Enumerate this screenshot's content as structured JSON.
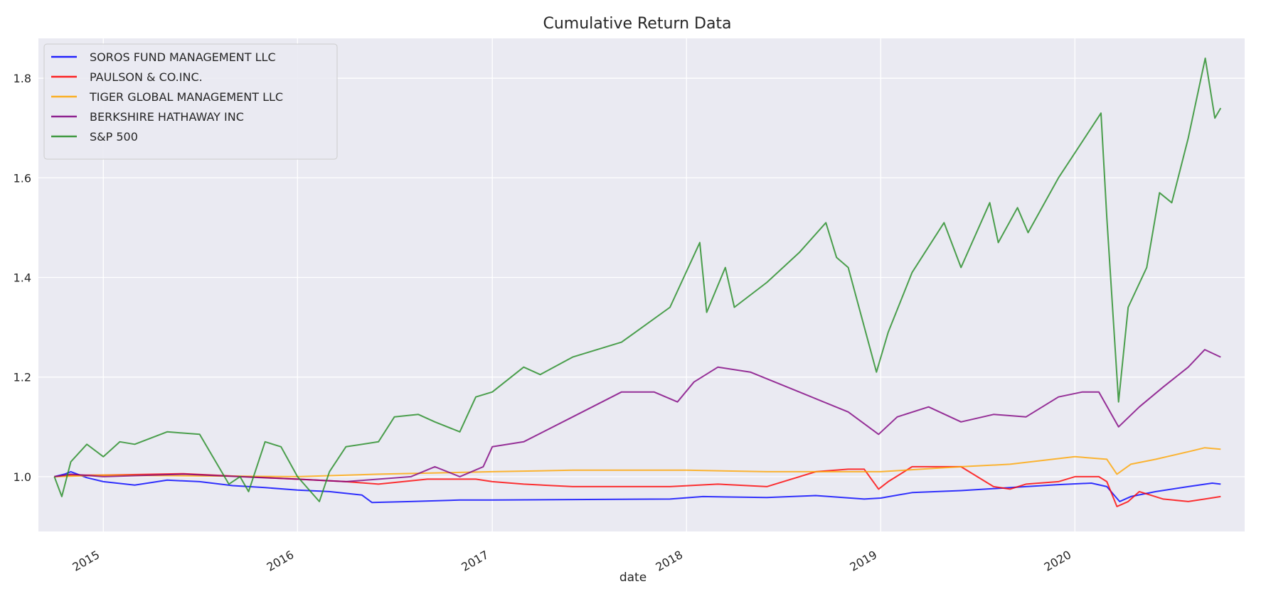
{
  "chart_data": {
    "type": "line",
    "title": "Cumulative Return Data",
    "xlabel": "date",
    "ylabel": "",
    "x_axis_type": "date",
    "xlim": [
      "2014-09-01",
      "2020-11-15"
    ],
    "ylim": [
      0.89,
      1.88
    ],
    "x_ticks": [
      "2015",
      "2016",
      "2017",
      "2018",
      "2019",
      "2020"
    ],
    "x_tick_dates": [
      "2015-01-01",
      "2016-01-01",
      "2017-01-01",
      "2018-01-01",
      "2019-01-01",
      "2020-01-01"
    ],
    "y_ticks": [
      "1.0",
      "1.2",
      "1.4",
      "1.6",
      "1.8"
    ],
    "y_tick_values": [
      1.0,
      1.2,
      1.4,
      1.6,
      1.8
    ],
    "grid": true,
    "legend_position": "top-left",
    "background": "#eaeaf2",
    "series": [
      {
        "name": "SOROS FUND MANAGEMENT LLC",
        "color": "#0000ff",
        "points": [
          [
            "2014-10-01",
            1.0
          ],
          [
            "2014-10-20",
            1.005
          ],
          [
            "2014-11-01",
            1.01
          ],
          [
            "2014-12-01",
            0.998
          ],
          [
            "2015-01-01",
            0.99
          ],
          [
            "2015-03-01",
            0.983
          ],
          [
            "2015-05-01",
            0.993
          ],
          [
            "2015-07-01",
            0.99
          ],
          [
            "2015-09-01",
            0.982
          ],
          [
            "2015-11-01",
            0.978
          ],
          [
            "2016-01-01",
            0.973
          ],
          [
            "2016-03-01",
            0.97
          ],
          [
            "2016-05-01",
            0.963
          ],
          [
            "2016-05-20",
            0.948
          ],
          [
            "2016-08-01",
            0.95
          ],
          [
            "2016-11-01",
            0.953
          ],
          [
            "2017-01-01",
            0.953
          ],
          [
            "2017-06-01",
            0.954
          ],
          [
            "2017-12-01",
            0.955
          ],
          [
            "2018-02-01",
            0.96
          ],
          [
            "2018-06-01",
            0.958
          ],
          [
            "2018-09-01",
            0.962
          ],
          [
            "2018-12-01",
            0.955
          ],
          [
            "2019-01-01",
            0.957
          ],
          [
            "2019-03-01",
            0.968
          ],
          [
            "2019-06-01",
            0.972
          ],
          [
            "2019-09-01",
            0.978
          ],
          [
            "2019-12-01",
            0.984
          ],
          [
            "2020-02-01",
            0.987
          ],
          [
            "2020-03-01",
            0.98
          ],
          [
            "2020-03-25",
            0.95
          ],
          [
            "2020-04-15",
            0.96
          ],
          [
            "2020-06-01",
            0.97
          ],
          [
            "2020-08-01",
            0.98
          ],
          [
            "2020-09-15",
            0.987
          ],
          [
            "2020-10-01",
            0.985
          ]
        ]
      },
      {
        "name": "PAULSON & CO.INC.",
        "color": "#ff0000",
        "points": [
          [
            "2014-10-01",
            1.0
          ],
          [
            "2014-11-01",
            1.003
          ],
          [
            "2015-01-01",
            1.003
          ],
          [
            "2015-06-01",
            1.006
          ],
          [
            "2016-01-01",
            0.995
          ],
          [
            "2016-04-01",
            0.99
          ],
          [
            "2016-06-01",
            0.985
          ],
          [
            "2016-09-01",
            0.995
          ],
          [
            "2016-12-01",
            0.995
          ],
          [
            "2017-01-01",
            0.99
          ],
          [
            "2017-03-01",
            0.985
          ],
          [
            "2017-06-01",
            0.98
          ],
          [
            "2017-12-01",
            0.98
          ],
          [
            "2018-03-01",
            0.985
          ],
          [
            "2018-06-01",
            0.98
          ],
          [
            "2018-09-01",
            1.01
          ],
          [
            "2018-11-01",
            1.015
          ],
          [
            "2018-12-01",
            1.015
          ],
          [
            "2018-12-28",
            0.975
          ],
          [
            "2019-01-15",
            0.99
          ],
          [
            "2019-03-01",
            1.02
          ],
          [
            "2019-06-01",
            1.02
          ],
          [
            "2019-08-01",
            0.98
          ],
          [
            "2019-09-01",
            0.975
          ],
          [
            "2019-10-01",
            0.985
          ],
          [
            "2019-12-01",
            0.99
          ],
          [
            "2020-01-01",
            1.0
          ],
          [
            "2020-02-15",
            1.0
          ],
          [
            "2020-03-01",
            0.99
          ],
          [
            "2020-03-20",
            0.94
          ],
          [
            "2020-04-10",
            0.95
          ],
          [
            "2020-05-01",
            0.97
          ],
          [
            "2020-06-15",
            0.955
          ],
          [
            "2020-08-01",
            0.95
          ],
          [
            "2020-09-01",
            0.955
          ],
          [
            "2020-10-01",
            0.96
          ]
        ]
      },
      {
        "name": "TIGER GLOBAL MANAGEMENT LLC",
        "color": "#ffa500",
        "points": [
          [
            "2014-10-01",
            1.0
          ],
          [
            "2015-01-01",
            1.003
          ],
          [
            "2016-01-01",
            1.0
          ],
          [
            "2016-06-01",
            1.005
          ],
          [
            "2017-01-01",
            1.01
          ],
          [
            "2017-06-01",
            1.013
          ],
          [
            "2018-01-01",
            1.013
          ],
          [
            "2018-06-01",
            1.01
          ],
          [
            "2019-01-01",
            1.01
          ],
          [
            "2019-06-01",
            1.02
          ],
          [
            "2019-09-01",
            1.025
          ],
          [
            "2020-01-01",
            1.04
          ],
          [
            "2020-03-01",
            1.035
          ],
          [
            "2020-03-20",
            1.005
          ],
          [
            "2020-04-15",
            1.025
          ],
          [
            "2020-06-01",
            1.035
          ],
          [
            "2020-08-01",
            1.05
          ],
          [
            "2020-09-01",
            1.058
          ],
          [
            "2020-10-01",
            1.055
          ]
        ]
      },
      {
        "name": "BERKSHIRE HATHAWAY INC",
        "color": "#800080",
        "points": [
          [
            "2014-10-01",
            1.0
          ],
          [
            "2014-11-01",
            1.005
          ],
          [
            "2015-01-01",
            1.0
          ],
          [
            "2015-06-01",
            1.005
          ],
          [
            "2016-01-01",
            0.995
          ],
          [
            "2016-04-01",
            0.99
          ],
          [
            "2016-08-01",
            1.0
          ],
          [
            "2016-09-15",
            1.02
          ],
          [
            "2016-11-01",
            1.0
          ],
          [
            "2016-12-15",
            1.02
          ],
          [
            "2017-01-01",
            1.06
          ],
          [
            "2017-03-01",
            1.07
          ],
          [
            "2017-06-01",
            1.12
          ],
          [
            "2017-09-01",
            1.17
          ],
          [
            "2017-11-01",
            1.17
          ],
          [
            "2017-12-15",
            1.15
          ],
          [
            "2018-01-15",
            1.19
          ],
          [
            "2018-03-01",
            1.22
          ],
          [
            "2018-05-01",
            1.21
          ],
          [
            "2018-08-01",
            1.17
          ],
          [
            "2018-11-01",
            1.13
          ],
          [
            "2018-12-28",
            1.085
          ],
          [
            "2019-02-01",
            1.12
          ],
          [
            "2019-04-01",
            1.14
          ],
          [
            "2019-06-01",
            1.11
          ],
          [
            "2019-08-01",
            1.125
          ],
          [
            "2019-10-01",
            1.12
          ],
          [
            "2019-12-01",
            1.16
          ],
          [
            "2020-01-15",
            1.17
          ],
          [
            "2020-02-15",
            1.17
          ],
          [
            "2020-03-23",
            1.1
          ],
          [
            "2020-05-01",
            1.14
          ],
          [
            "2020-06-15",
            1.18
          ],
          [
            "2020-08-01",
            1.22
          ],
          [
            "2020-09-01",
            1.255
          ],
          [
            "2020-10-01",
            1.24
          ]
        ]
      },
      {
        "name": "S&P 500",
        "color": "#228b22",
        "points": [
          [
            "2014-10-01",
            1.0
          ],
          [
            "2014-10-15",
            0.96
          ],
          [
            "2014-11-01",
            1.03
          ],
          [
            "2014-12-01",
            1.065
          ],
          [
            "2015-01-01",
            1.04
          ],
          [
            "2015-02-01",
            1.07
          ],
          [
            "2015-03-01",
            1.065
          ],
          [
            "2015-05-01",
            1.09
          ],
          [
            "2015-07-01",
            1.085
          ],
          [
            "2015-08-25",
            0.985
          ],
          [
            "2015-09-15",
            1.0
          ],
          [
            "2015-10-01",
            0.97
          ],
          [
            "2015-11-01",
            1.07
          ],
          [
            "2015-12-01",
            1.06
          ],
          [
            "2016-01-01",
            1.0
          ],
          [
            "2016-02-11",
            0.95
          ],
          [
            "2016-03-01",
            1.01
          ],
          [
            "2016-04-01",
            1.06
          ],
          [
            "2016-06-01",
            1.07
          ],
          [
            "2016-07-01",
            1.12
          ],
          [
            "2016-08-15",
            1.125
          ],
          [
            "2016-09-15",
            1.11
          ],
          [
            "2016-11-01",
            1.09
          ],
          [
            "2016-12-01",
            1.16
          ],
          [
            "2017-01-01",
            1.17
          ],
          [
            "2017-03-01",
            1.22
          ],
          [
            "2017-04-01",
            1.205
          ],
          [
            "2017-06-01",
            1.24
          ],
          [
            "2017-09-01",
            1.27
          ],
          [
            "2017-12-01",
            1.34
          ],
          [
            "2018-01-26",
            1.47
          ],
          [
            "2018-02-08",
            1.33
          ],
          [
            "2018-03-15",
            1.42
          ],
          [
            "2018-04-01",
            1.34
          ],
          [
            "2018-06-01",
            1.39
          ],
          [
            "2018-08-01",
            1.45
          ],
          [
            "2018-09-20",
            1.51
          ],
          [
            "2018-10-10",
            1.44
          ],
          [
            "2018-11-01",
            1.42
          ],
          [
            "2018-12-24",
            1.21
          ],
          [
            "2019-01-15",
            1.29
          ],
          [
            "2019-03-01",
            1.41
          ],
          [
            "2019-04-30",
            1.51
          ],
          [
            "2019-06-01",
            1.42
          ],
          [
            "2019-07-25",
            1.55
          ],
          [
            "2019-08-10",
            1.47
          ],
          [
            "2019-09-15",
            1.54
          ],
          [
            "2019-10-05",
            1.49
          ],
          [
            "2019-12-01",
            1.6
          ],
          [
            "2020-01-01",
            1.65
          ],
          [
            "2020-02-19",
            1.73
          ],
          [
            "2020-03-01",
            1.52
          ],
          [
            "2020-03-23",
            1.15
          ],
          [
            "2020-04-10",
            1.34
          ],
          [
            "2020-05-15",
            1.42
          ],
          [
            "2020-06-08",
            1.57
          ],
          [
            "2020-07-01",
            1.55
          ],
          [
            "2020-08-01",
            1.68
          ],
          [
            "2020-09-02",
            1.84
          ],
          [
            "2020-09-20",
            1.72
          ],
          [
            "2020-10-01",
            1.74
          ]
        ]
      }
    ]
  }
}
